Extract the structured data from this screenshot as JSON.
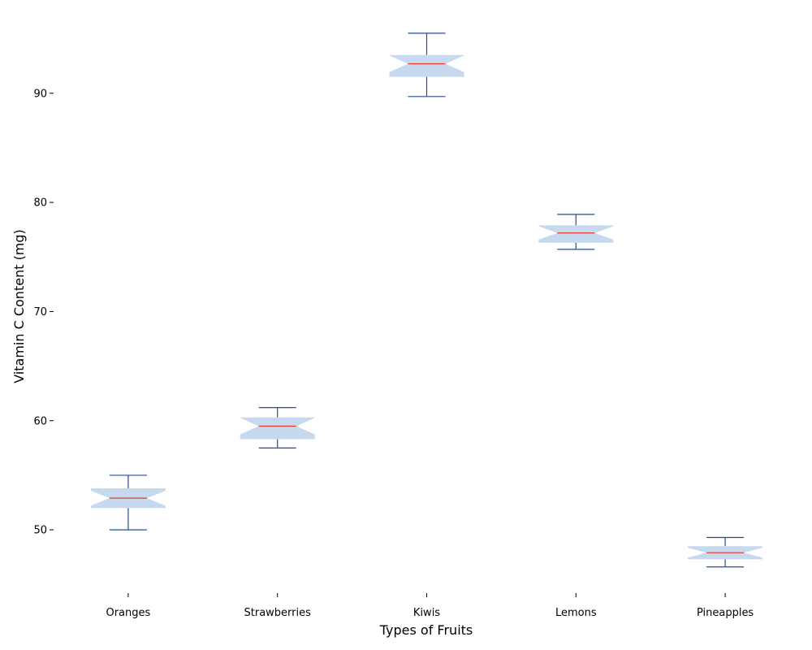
{
  "chart_data": {
    "type": "box",
    "title": "",
    "xlabel": "Types of Fruits",
    "ylabel": "Vitamin C Content (mg)",
    "ylim": [
      44.2,
      97.8
    ],
    "yticks": [
      50,
      60,
      70,
      80,
      90
    ],
    "notched": true,
    "grid": false,
    "categories": [
      "Oranges",
      "Strawberries",
      "Kiwis",
      "Lemons",
      "Pineapples"
    ],
    "boxes": [
      {
        "whisker_low": 50.0,
        "q1": 52.0,
        "median": 52.9,
        "q3": 53.8,
        "whisker_high": 55.0
      },
      {
        "whisker_low": 57.5,
        "q1": 58.3,
        "median": 59.5,
        "q3": 60.3,
        "whisker_high": 61.2
      },
      {
        "whisker_low": 89.7,
        "q1": 91.5,
        "median": 92.7,
        "q3": 93.5,
        "whisker_high": 95.5
      },
      {
        "whisker_low": 75.7,
        "q1": 76.3,
        "median": 77.2,
        "q3": 77.9,
        "whisker_high": 78.9
      },
      {
        "whisker_low": 46.6,
        "q1": 47.3,
        "median": 47.9,
        "q3": 48.5,
        "whisker_high": 49.3
      }
    ],
    "colors": {
      "box_fill": "#c6d9ee",
      "whisker": "#1f4e9c",
      "median": "#e8392b"
    }
  }
}
